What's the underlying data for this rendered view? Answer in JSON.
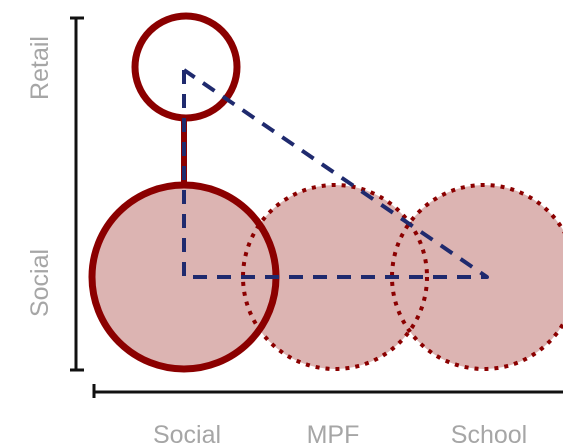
{
  "labels": {
    "y_top": "Retail",
    "y_bottom": "Social",
    "x_left": "Social",
    "x_middle": "MPF",
    "x_right": "School"
  },
  "colors": {
    "circle_stroke": "#8b0000",
    "circle_fill": "#dcb4b2",
    "dashed_line": "#1f2a6e",
    "axis": "#111111",
    "label": "#a6a6a6"
  },
  "circles": [
    {
      "name": "retail-circle",
      "style": "solid",
      "filled": false
    },
    {
      "name": "social-circle",
      "style": "solid",
      "filled": true
    },
    {
      "name": "mpf-circle",
      "style": "dotted",
      "filled": true
    },
    {
      "name": "school-circle",
      "style": "dotted",
      "filled": true
    }
  ]
}
